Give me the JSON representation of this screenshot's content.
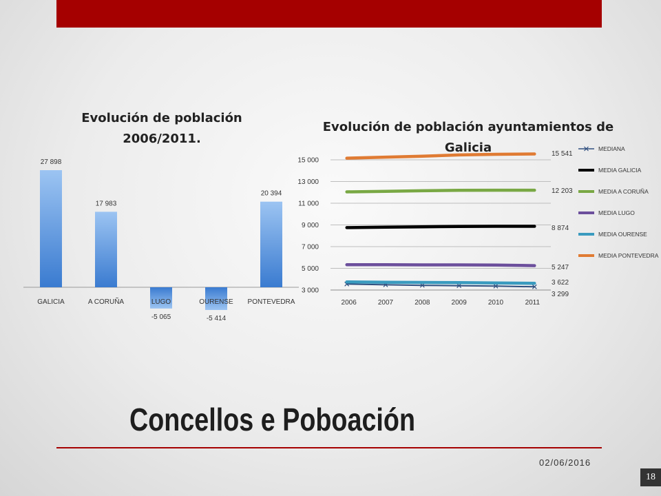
{
  "slide": {
    "title": "Concellos e Poboación",
    "date": "02/06/2016",
    "page_number": "18"
  },
  "colors": {
    "accent": "#a50000"
  },
  "chart_data": [
    {
      "type": "bar",
      "title": "Evolución de población 2006/2011.",
      "categories": [
        "GALICIA",
        "A CORUÑA",
        "LUGO",
        "OURENSE",
        "PONTEVEDRA"
      ],
      "values": [
        27898,
        17983,
        -5065,
        -5414,
        20394
      ],
      "value_labels": [
        "27 898",
        "17 983",
        "-5 065",
        "-5 414",
        "20 394"
      ],
      "bar_color": "#4a8fde"
    },
    {
      "type": "line",
      "title": "Evolución de población ayuntamientos de Galicia",
      "x": [
        "2006",
        "2007",
        "2008",
        "2009",
        "2010",
        "2011"
      ],
      "ylim": [
        3000,
        15000
      ],
      "y_ticks": [
        3000,
        5000,
        7000,
        9000,
        11000,
        13000,
        15000
      ],
      "y_tick_labels": [
        "3 000",
        "5 000",
        "7 000",
        "9 000",
        "11 000",
        "13 000",
        "15 000"
      ],
      "grid": true,
      "legend": "right",
      "series": [
        {
          "name": "MEDIANA",
          "color": "#2f4f7f",
          "values": [
            3550,
            3480,
            3430,
            3400,
            3360,
            3299
          ],
          "end_label": "3 299"
        },
        {
          "name": "MEDIA GALICIA",
          "color": "#000000",
          "values": [
            8750,
            8790,
            8830,
            8860,
            8870,
            8874
          ],
          "end_label": "8 874"
        },
        {
          "name": "MEDIA A CORUÑA",
          "color": "#79a844",
          "values": [
            12050,
            12100,
            12150,
            12190,
            12200,
            12203
          ],
          "end_label": "12 203"
        },
        {
          "name": "MEDIA LUGO",
          "color": "#6c4f9c",
          "values": [
            5330,
            5330,
            5320,
            5320,
            5300,
            5247
          ],
          "end_label": "5 247"
        },
        {
          "name": "MEDIA OURENSE",
          "color": "#3a9bbf",
          "values": [
            3750,
            3720,
            3700,
            3680,
            3650,
            3622
          ],
          "end_label": "3 622"
        },
        {
          "name": "MEDIA PONTEVEDRA",
          "color": "#e07b33",
          "values": [
            15150,
            15250,
            15330,
            15450,
            15510,
            15541
          ],
          "end_label": "15 541"
        }
      ]
    }
  ]
}
